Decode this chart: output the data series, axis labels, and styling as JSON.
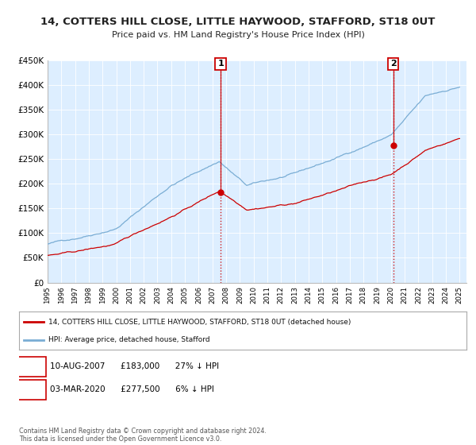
{
  "title": "14, COTTERS HILL CLOSE, LITTLE HAYWOOD, STAFFORD, ST18 0UT",
  "subtitle": "Price paid vs. HM Land Registry's House Price Index (HPI)",
  "title_fontsize": 9.5,
  "subtitle_fontsize": 8,
  "x_start_year": 1995,
  "x_end_year": 2025,
  "y_min": 0,
  "y_max": 450000,
  "y_ticks": [
    0,
    50000,
    100000,
    150000,
    200000,
    250000,
    300000,
    350000,
    400000,
    450000
  ],
  "y_tick_labels": [
    "£0",
    "£50K",
    "£100K",
    "£150K",
    "£200K",
    "£250K",
    "£300K",
    "£350K",
    "£400K",
    "£450K"
  ],
  "hpi_color": "#7aadd4",
  "price_color": "#cc0000",
  "bg_color": "#ddeeff",
  "plot_bg": "#ffffff",
  "transaction1_year": 2007.6,
  "transaction1_price": 183000,
  "transaction2_year": 2020.17,
  "transaction2_price": 277500,
  "legend_line1": "14, COTTERS HILL CLOSE, LITTLE HAYWOOD, STAFFORD, ST18 0UT (detached house)",
  "legend_line2": "HPI: Average price, detached house, Stafford",
  "note1_label": "1",
  "note1_date": "10-AUG-2007",
  "note1_price": "£183,000",
  "note1_hpi": "27% ↓ HPI",
  "note2_label": "2",
  "note2_date": "03-MAR-2020",
  "note2_price": "£277,500",
  "note2_hpi": "6% ↓ HPI",
  "footer": "Contains HM Land Registry data © Crown copyright and database right 2024.\nThis data is licensed under the Open Government Licence v3.0."
}
